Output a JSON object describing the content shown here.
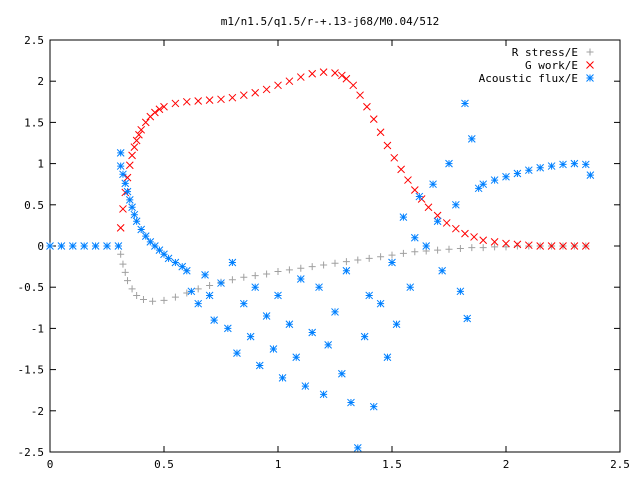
{
  "chart_data": {
    "type": "scatter",
    "title": "m1/n1.5/q1.5/r-+.13-j68/M0.04/512",
    "xlabel": "",
    "ylabel": "",
    "xlim": [
      0,
      2.5
    ],
    "ylim": [
      -2.5,
      2.5
    ],
    "x_ticks": [
      0,
      0.5,
      1,
      1.5,
      2,
      2.5
    ],
    "x_tick_labels": [
      "0",
      "0.5",
      "1",
      "1.5",
      "2",
      "2.5"
    ],
    "y_ticks": [
      -2.5,
      -2,
      -1.5,
      -1,
      -0.5,
      0,
      0.5,
      1,
      1.5,
      2,
      2.5
    ],
    "y_tick_labels": [
      "-2.5",
      "-2",
      "-1.5",
      "-1",
      "-0.5",
      "0",
      "0.5",
      "1",
      "1.5",
      "2",
      "2.5"
    ],
    "grid": false,
    "legend_position": "top-right",
    "series": [
      {
        "name": "R stress/E",
        "marker": "+",
        "color": "#a0a0a0",
        "points": [
          [
            0.31,
            -0.1
          ],
          [
            0.32,
            -0.22
          ],
          [
            0.33,
            -0.32
          ],
          [
            0.34,
            -0.42
          ],
          [
            0.36,
            -0.52
          ],
          [
            0.38,
            -0.6
          ],
          [
            0.41,
            -0.65
          ],
          [
            0.45,
            -0.67
          ],
          [
            0.5,
            -0.66
          ],
          [
            0.55,
            -0.62
          ],
          [
            0.6,
            -0.57
          ],
          [
            0.65,
            -0.52
          ],
          [
            0.7,
            -0.48
          ],
          [
            0.75,
            -0.44
          ],
          [
            0.8,
            -0.41
          ],
          [
            0.85,
            -0.38
          ],
          [
            0.9,
            -0.36
          ],
          [
            0.95,
            -0.34
          ],
          [
            1.0,
            -0.31
          ],
          [
            1.05,
            -0.29
          ],
          [
            1.1,
            -0.27
          ],
          [
            1.15,
            -0.25
          ],
          [
            1.2,
            -0.23
          ],
          [
            1.25,
            -0.21
          ],
          [
            1.3,
            -0.19
          ],
          [
            1.35,
            -0.17
          ],
          [
            1.4,
            -0.15
          ],
          [
            1.45,
            -0.13
          ],
          [
            1.5,
            -0.11
          ],
          [
            1.55,
            -0.09
          ],
          [
            1.6,
            -0.07
          ],
          [
            1.65,
            -0.06
          ],
          [
            1.7,
            -0.05
          ],
          [
            1.75,
            -0.04
          ],
          [
            1.8,
            -0.03
          ],
          [
            1.85,
            -0.02
          ],
          [
            1.9,
            -0.02
          ],
          [
            1.95,
            -0.01
          ],
          [
            2.0,
            -0.01
          ],
          [
            2.05,
            0.0
          ],
          [
            2.1,
            0.0
          ],
          [
            2.15,
            0.0
          ],
          [
            2.2,
            0.0
          ],
          [
            2.25,
            0.0
          ],
          [
            2.3,
            0.0
          ],
          [
            2.35,
            0.0
          ]
        ]
      },
      {
        "name": "G work/E",
        "marker": "x",
        "color": "#ff0000",
        "points": [
          [
            0.31,
            0.22
          ],
          [
            0.32,
            0.45
          ],
          [
            0.33,
            0.65
          ],
          [
            0.34,
            0.83
          ],
          [
            0.35,
            0.98
          ],
          [
            0.36,
            1.1
          ],
          [
            0.37,
            1.2
          ],
          [
            0.38,
            1.28
          ],
          [
            0.39,
            1.35
          ],
          [
            0.4,
            1.41
          ],
          [
            0.42,
            1.5
          ],
          [
            0.44,
            1.57
          ],
          [
            0.46,
            1.62
          ],
          [
            0.48,
            1.66
          ],
          [
            0.5,
            1.69
          ],
          [
            0.55,
            1.73
          ],
          [
            0.6,
            1.75
          ],
          [
            0.65,
            1.76
          ],
          [
            0.7,
            1.77
          ],
          [
            0.75,
            1.78
          ],
          [
            0.8,
            1.8
          ],
          [
            0.85,
            1.83
          ],
          [
            0.9,
            1.86
          ],
          [
            0.95,
            1.9
          ],
          [
            1.0,
            1.95
          ],
          [
            1.05,
            2.0
          ],
          [
            1.1,
            2.05
          ],
          [
            1.15,
            2.09
          ],
          [
            1.2,
            2.11
          ],
          [
            1.25,
            2.1
          ],
          [
            1.28,
            2.07
          ],
          [
            1.3,
            2.03
          ],
          [
            1.33,
            1.95
          ],
          [
            1.36,
            1.83
          ],
          [
            1.39,
            1.69
          ],
          [
            1.42,
            1.54
          ],
          [
            1.45,
            1.38
          ],
          [
            1.48,
            1.22
          ],
          [
            1.51,
            1.07
          ],
          [
            1.54,
            0.93
          ],
          [
            1.57,
            0.8
          ],
          [
            1.6,
            0.68
          ],
          [
            1.63,
            0.57
          ],
          [
            1.66,
            0.47
          ],
          [
            1.7,
            0.37
          ],
          [
            1.74,
            0.28
          ],
          [
            1.78,
            0.21
          ],
          [
            1.82,
            0.15
          ],
          [
            1.86,
            0.11
          ],
          [
            1.9,
            0.07
          ],
          [
            1.95,
            0.05
          ],
          [
            2.0,
            0.03
          ],
          [
            2.05,
            0.02
          ],
          [
            2.1,
            0.01
          ],
          [
            2.15,
            0.0
          ],
          [
            2.2,
            0.0
          ],
          [
            2.25,
            0.0
          ],
          [
            2.3,
            0.0
          ],
          [
            2.35,
            0.0
          ]
        ]
      },
      {
        "name": "Acoustic flux/E",
        "marker": "*",
        "color": "#0080ff",
        "points": [
          [
            0.0,
            0.0
          ],
          [
            0.05,
            0.0
          ],
          [
            0.1,
            0.0
          ],
          [
            0.15,
            0.0
          ],
          [
            0.2,
            0.0
          ],
          [
            0.25,
            0.0
          ],
          [
            0.3,
            0.0
          ],
          [
            0.31,
            1.13
          ],
          [
            0.31,
            0.97
          ],
          [
            0.32,
            0.87
          ],
          [
            0.33,
            0.76
          ],
          [
            0.34,
            0.66
          ],
          [
            0.35,
            0.56
          ],
          [
            0.36,
            0.47
          ],
          [
            0.37,
            0.38
          ],
          [
            0.38,
            0.3
          ],
          [
            0.4,
            0.2
          ],
          [
            0.42,
            0.12
          ],
          [
            0.44,
            0.05
          ],
          [
            0.46,
            0.0
          ],
          [
            0.48,
            -0.05
          ],
          [
            0.5,
            -0.1
          ],
          [
            0.52,
            -0.15
          ],
          [
            0.55,
            -0.2
          ],
          [
            0.58,
            -0.25
          ],
          [
            0.6,
            -0.3
          ],
          [
            0.62,
            -0.55
          ],
          [
            0.65,
            -0.7
          ],
          [
            0.68,
            -0.35
          ],
          [
            0.7,
            -0.6
          ],
          [
            0.72,
            -0.9
          ],
          [
            0.75,
            -0.45
          ],
          [
            0.78,
            -1.0
          ],
          [
            0.8,
            -0.2
          ],
          [
            0.82,
            -1.3
          ],
          [
            0.85,
            -0.7
          ],
          [
            0.88,
            -1.1
          ],
          [
            0.9,
            -0.5
          ],
          [
            0.92,
            -1.45
          ],
          [
            0.95,
            -0.85
          ],
          [
            0.98,
            -1.25
          ],
          [
            1.0,
            -0.6
          ],
          [
            1.02,
            -1.6
          ],
          [
            1.05,
            -0.95
          ],
          [
            1.08,
            -1.35
          ],
          [
            1.1,
            -0.4
          ],
          [
            1.12,
            -1.7
          ],
          [
            1.15,
            -1.05
          ],
          [
            1.18,
            -0.5
          ],
          [
            1.2,
            -1.8
          ],
          [
            1.22,
            -1.2
          ],
          [
            1.25,
            -0.8
          ],
          [
            1.28,
            -1.55
          ],
          [
            1.3,
            -0.3
          ],
          [
            1.32,
            -1.9
          ],
          [
            1.35,
            -2.45
          ],
          [
            1.38,
            -1.1
          ],
          [
            1.4,
            -0.6
          ],
          [
            1.42,
            -1.95
          ],
          [
            1.45,
            -0.7
          ],
          [
            1.48,
            -1.35
          ],
          [
            1.5,
            -0.2
          ],
          [
            1.52,
            -0.95
          ],
          [
            1.55,
            0.35
          ],
          [
            1.58,
            -0.5
          ],
          [
            1.6,
            0.1
          ],
          [
            1.62,
            0.6
          ],
          [
            1.65,
            0.0
          ],
          [
            1.68,
            0.75
          ],
          [
            1.7,
            0.3
          ],
          [
            1.72,
            -0.3
          ],
          [
            1.75,
            1.0
          ],
          [
            1.78,
            0.5
          ],
          [
            1.8,
            -0.55
          ],
          [
            1.82,
            1.73
          ],
          [
            1.83,
            -0.88
          ],
          [
            1.85,
            1.3
          ],
          [
            1.88,
            0.7
          ],
          [
            1.9,
            0.75
          ],
          [
            1.95,
            0.8
          ],
          [
            2.0,
            0.84
          ],
          [
            2.05,
            0.88
          ],
          [
            2.1,
            0.92
          ],
          [
            2.15,
            0.95
          ],
          [
            2.2,
            0.97
          ],
          [
            2.25,
            0.99
          ],
          [
            2.3,
            1.0
          ],
          [
            2.35,
            0.99
          ],
          [
            2.37,
            0.86
          ]
        ]
      }
    ]
  }
}
